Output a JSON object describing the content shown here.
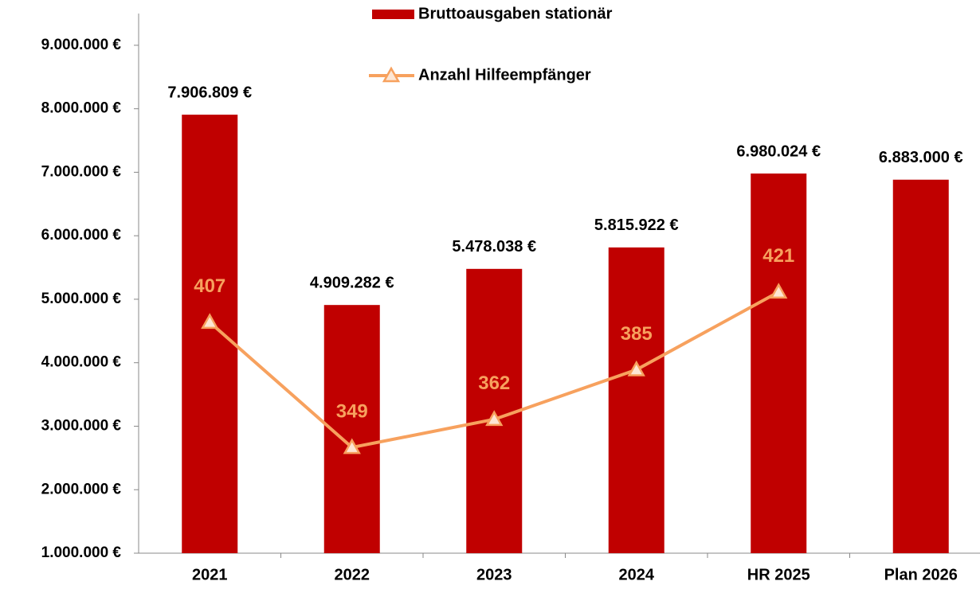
{
  "chart_data": {
    "type": "bar",
    "categories": [
      "2021",
      "2022",
      "2023",
      "2024",
      "HR 2025",
      "Plan 2026"
    ],
    "series": [
      {
        "name": "Bruttoausgaben stationär",
        "type": "bar",
        "color": "#c00000",
        "values": [
          7906809,
          4909282,
          5478038,
          5815922,
          6980024,
          6883000
        ],
        "value_labels": [
          "7.906.809 €",
          "4.909.282 €",
          "5.478.038 €",
          "5.815.922 €",
          "6.980.024 €",
          "6.883.000 €"
        ]
      },
      {
        "name": "Anzahl Hilfeempfänger",
        "type": "line",
        "axis": "y2",
        "color": "#f7a15e",
        "values": [
          407,
          349,
          362,
          385,
          421,
          null
        ]
      }
    ],
    "ylim": [
      1000000,
      9500000
    ],
    "yticks": [
      {
        "value": 1000000,
        "label": "1.000.000 €"
      },
      {
        "value": 2000000,
        "label": "2.000.000 €"
      },
      {
        "value": 3000000,
        "label": "3.000.000 €"
      },
      {
        "value": 4000000,
        "label": "4.000.000 €"
      },
      {
        "value": 5000000,
        "label": "5.000.000 €"
      },
      {
        "value": 6000000,
        "label": "6.000.000 €"
      },
      {
        "value": 7000000,
        "label": "7.000.000 €"
      },
      {
        "value": 8000000,
        "label": "8.000.000 €"
      },
      {
        "value": 9000000,
        "label": "9.000.000 €"
      }
    ],
    "y2lim": [
      300,
      550
    ],
    "legend": "top"
  }
}
